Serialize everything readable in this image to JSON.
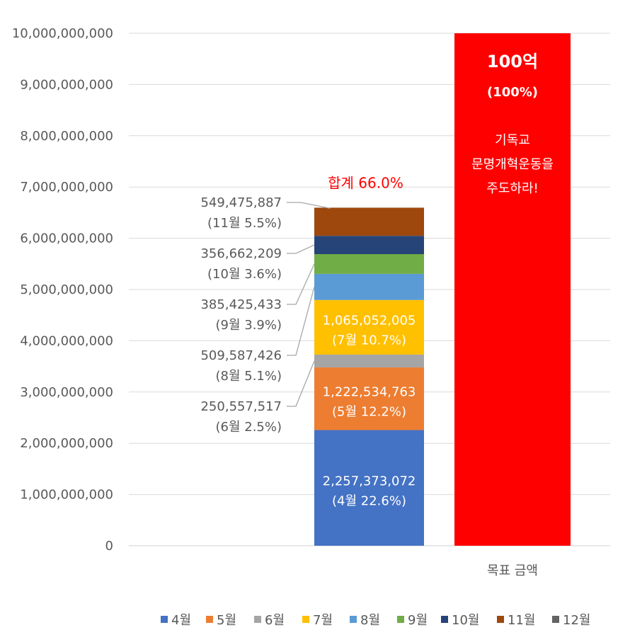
{
  "chart_data": {
    "type": "bar",
    "stacked": true,
    "ylim": [
      0,
      10000000000
    ],
    "y_ticks": [
      "0",
      "1,000,000,000",
      "2,000,000,000",
      "3,000,000,000",
      "4,000,000,000",
      "5,000,000,000",
      "6,000,000,000",
      "7,000,000,000",
      "8,000,000,000",
      "9,000,000,000",
      "10,000,000,000"
    ],
    "grid": true,
    "legend_position": "bottom",
    "categories": [
      "",
      "목표 금액"
    ],
    "series": [
      {
        "name": "4월",
        "color": "#4472C4",
        "values": [
          2257373072,
          0
        ],
        "label": "2,257,373,072",
        "pct": "(4월 22.6%)",
        "label_pos": "inside"
      },
      {
        "name": "5월",
        "color": "#ED7D31",
        "values": [
          1222534763,
          0
        ],
        "label": "1,222,534,763",
        "pct": "(5월 12.2%)",
        "label_pos": "inside"
      },
      {
        "name": "6월",
        "color": "#A5A5A5",
        "values": [
          250557517,
          0
        ],
        "label": "250,557,517",
        "pct": "(6월 2.5%)",
        "label_pos": "outside"
      },
      {
        "name": "7월",
        "color": "#FFC000",
        "values": [
          1065052005,
          0
        ],
        "label": "1,065,052,005",
        "pct": "(7월 10.7%)",
        "label_pos": "inside"
      },
      {
        "name": "8월",
        "color": "#5B9BD5",
        "values": [
          509587426,
          0
        ],
        "label": "509,587,426",
        "pct": "(8월 5.1%)",
        "label_pos": "outside"
      },
      {
        "name": "9월",
        "color": "#70AD47",
        "values": [
          385425433,
          0
        ],
        "label": "385,425,433",
        "pct": "(9월 3.9%)",
        "label_pos": "outside"
      },
      {
        "name": "10월",
        "color": "#264478",
        "values": [
          356662209,
          0
        ],
        "label": "356,662,209",
        "pct": "(10월 3.6%)",
        "label_pos": "outside"
      },
      {
        "name": "11월",
        "color": "#9E480E",
        "values": [
          549475887,
          0
        ],
        "label": "549,475,887",
        "pct": "(11월 5.5%)",
        "label_pos": "outside"
      },
      {
        "name": "12월",
        "color": "#636363",
        "values": [
          0,
          0
        ],
        "label": "",
        "pct": "",
        "label_pos": "none"
      }
    ],
    "target": {
      "value": 10000000000,
      "color": "#FF0000",
      "title": "100억",
      "pct": "(100%)",
      "lines": [
        "기독교",
        "문명개혁운동을",
        "주도하라!"
      ]
    },
    "total_label": "합계 66.0%",
    "total_color": "#FF0000"
  }
}
